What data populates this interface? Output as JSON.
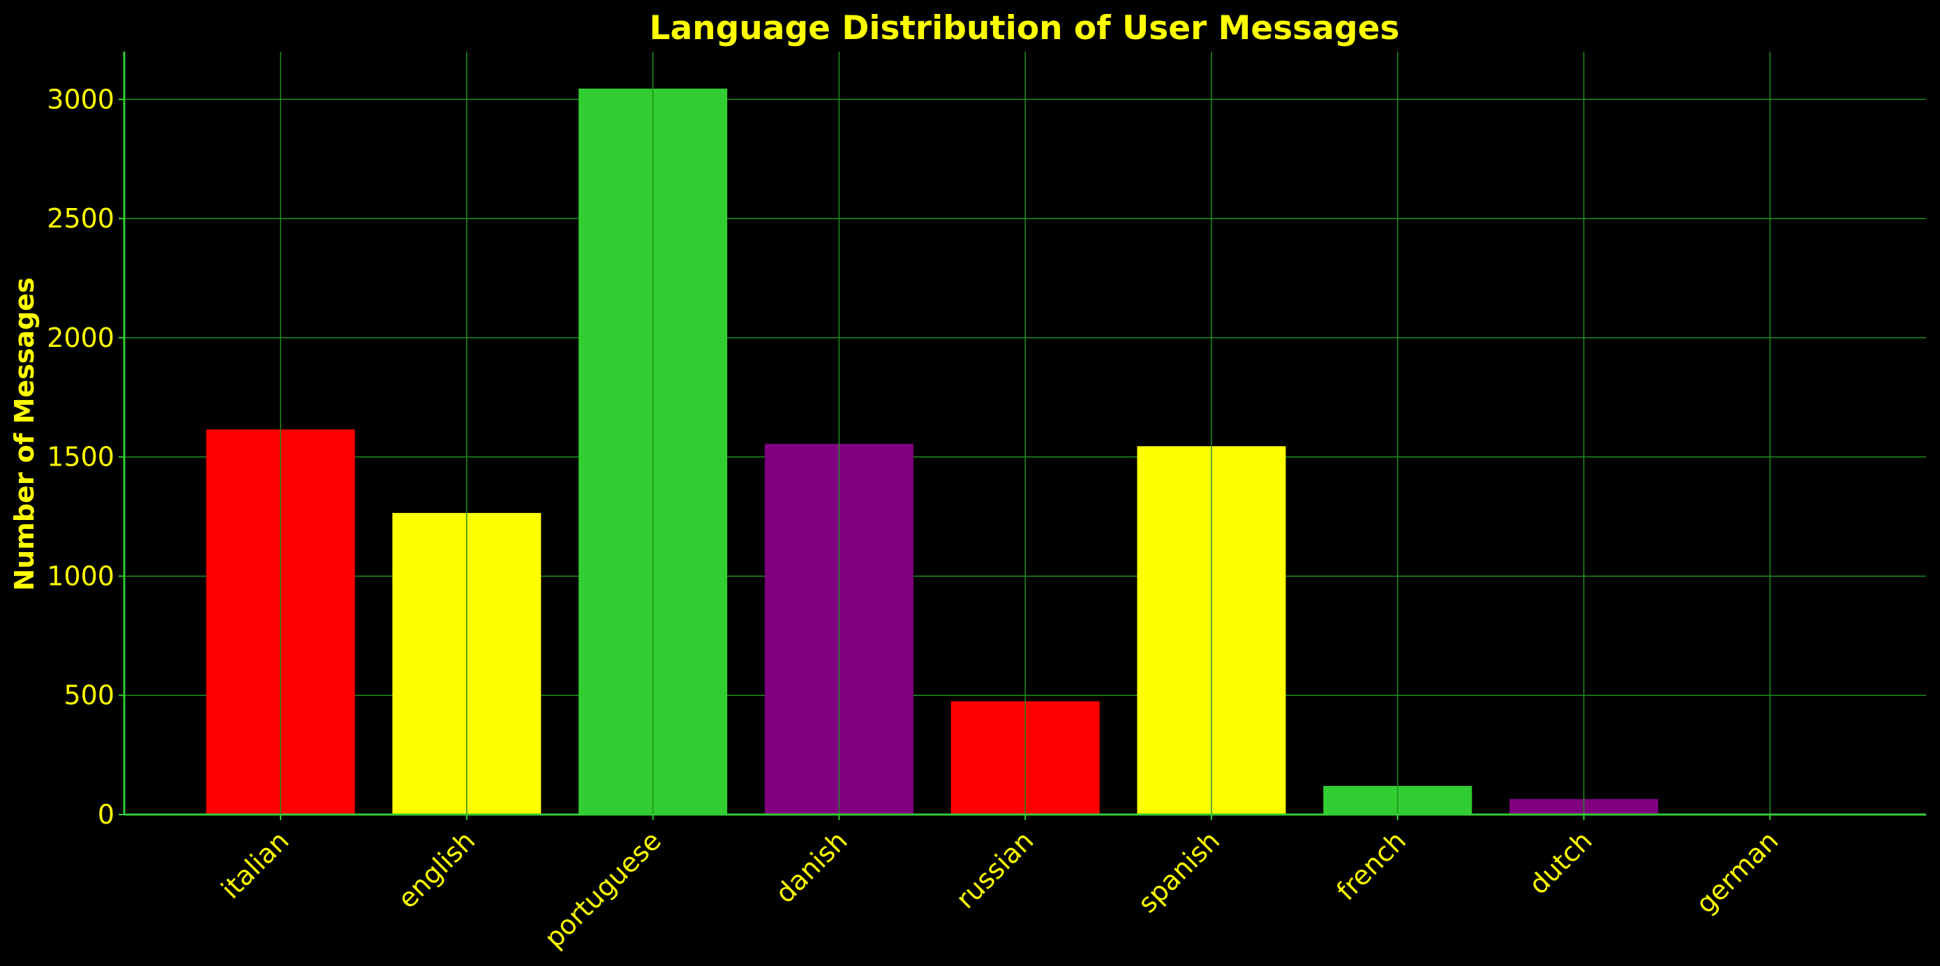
{
  "chart_data": {
    "type": "bar",
    "title": "Language Distribution of User Messages",
    "xlabel": "",
    "ylabel": "Number of Messages",
    "categories": [
      "italian",
      "english",
      "portuguese",
      "danish",
      "russian",
      "spanish",
      "french",
      "dutch",
      "german"
    ],
    "values": [
      1615,
      1265,
      3045,
      1555,
      475,
      1545,
      120,
      65,
      2
    ],
    "bar_colors": [
      "#ff0000",
      "#ffff00",
      "#32cd32",
      "#800080",
      "#ff0000",
      "#ffff00",
      "#32cd32",
      "#800080",
      "#ff0000"
    ],
    "ylim": [
      0,
      3200
    ],
    "yticks": [
      0,
      500,
      1000,
      1500,
      2000,
      2500,
      3000
    ],
    "grid": true,
    "legend": "none"
  },
  "colors": {
    "background": "#000000",
    "text": "#ffff00",
    "axis": "#32cd32",
    "grid": "#1f8f1f"
  }
}
